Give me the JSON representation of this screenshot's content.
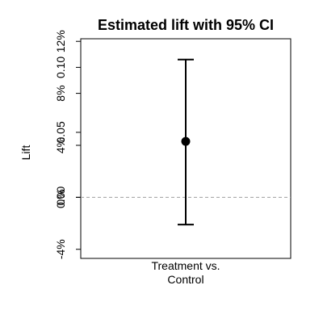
{
  "chart_data": {
    "type": "scatter",
    "title": "Estimated lift with 95% CI",
    "xlabel": "",
    "ylabel": "Lift",
    "ylim": [
      -0.047,
      0.122
    ],
    "categories": [
      "Treatment vs.\nControl"
    ],
    "series": [
      {
        "estimate": [
          0.043
        ],
        "ci_lower": [
          -0.021
        ],
        "ci_upper": [
          0.106
        ]
      }
    ],
    "y_ticks_numeric": [
      0,
      0.05,
      0.1
    ],
    "y_ticks_numeric_labels": [
      "0.00",
      "0.05",
      "0.10"
    ],
    "y_ticks_percent": [
      -0.04,
      0,
      0.04,
      0.08,
      0.12
    ],
    "y_ticks_percent_labels": [
      "-4%",
      "0%",
      "4%",
      "8%",
      "12%"
    ],
    "reference_line": 0,
    "reference_line_style": "dashed",
    "grid": false,
    "legend": "none",
    "colors": {
      "point": "#000000",
      "errorbar": "#000000",
      "reference": "#9e9e9e",
      "axis": "#000000"
    }
  }
}
